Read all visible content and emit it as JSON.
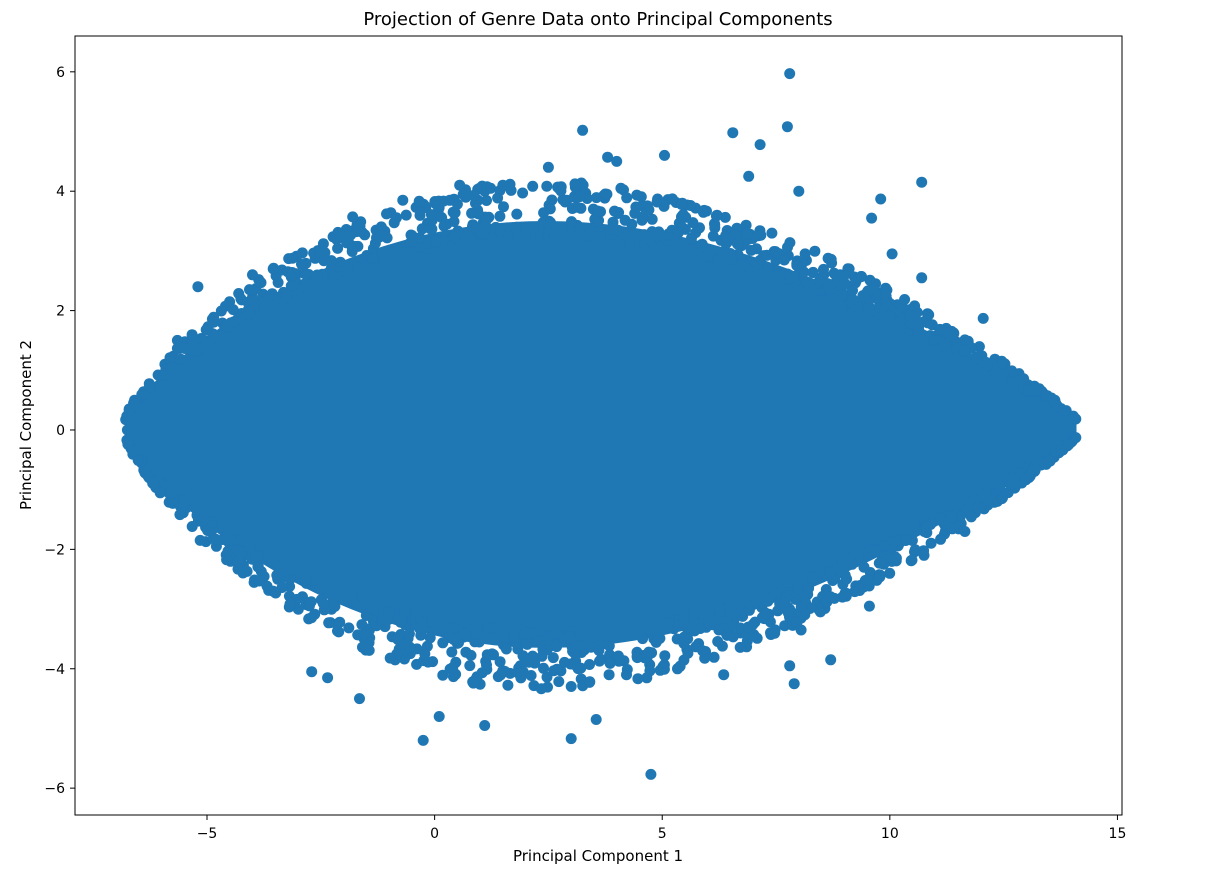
{
  "chart_data": {
    "type": "scatter",
    "title": "Projection of Genre Data onto Principal Components",
    "xlabel": "Principal Component 1",
    "ylabel": "Principal Component 2",
    "xlim": [
      -7.9,
      15.1
    ],
    "ylim": [
      -6.45,
      6.6
    ],
    "x_ticks": [
      -5,
      0,
      5,
      10,
      15
    ],
    "y_ticks": [
      -6,
      -4,
      -2,
      0,
      2,
      4,
      6
    ],
    "x_tick_labels": [
      "−5",
      "0",
      "5",
      "10",
      "15"
    ],
    "y_tick_labels": [
      "−6",
      "−4",
      "−2",
      "0",
      "2",
      "4",
      "6"
    ],
    "grid": false,
    "legend": "none",
    "series": [
      {
        "color": "#1f77b4",
        "marker": "circle",
        "description": "Dense lens-shaped cloud spanning x≈-6.8 to 14.1 and y≈-5.8 to 6.0; notable outliers listed",
        "points": [
          [
            7.8,
            5.97
          ],
          [
            7.75,
            5.08
          ],
          [
            3.25,
            5.02
          ],
          [
            6.55,
            4.98
          ],
          [
            5.05,
            4.6
          ],
          [
            3.8,
            4.57
          ],
          [
            7.15,
            4.78
          ],
          [
            10.7,
            4.15
          ],
          [
            9.8,
            3.87
          ],
          [
            4.0,
            4.5
          ],
          [
            2.5,
            4.4
          ],
          [
            6.9,
            4.25
          ],
          [
            8.0,
            4.0
          ],
          [
            9.6,
            3.55
          ],
          [
            10.05,
            2.95
          ],
          [
            10.7,
            2.55
          ],
          [
            12.05,
            1.87
          ],
          [
            14.05,
            0.2
          ],
          [
            13.85,
            0.15
          ],
          [
            13.6,
            0.1
          ],
          [
            -6.75,
            0.0
          ],
          [
            -5.2,
            2.4
          ],
          [
            -4.0,
            2.6
          ],
          [
            -1.8,
            3.57
          ],
          [
            -0.7,
            3.85
          ],
          [
            0.55,
            4.1
          ],
          [
            1.5,
            4.1
          ],
          [
            -5.15,
            -1.85
          ],
          [
            -5.65,
            1.5
          ],
          [
            -0.25,
            -5.2
          ],
          [
            4.75,
            -5.77
          ],
          [
            3.0,
            -5.17
          ],
          [
            3.55,
            -4.85
          ],
          [
            1.1,
            -4.95
          ],
          [
            0.1,
            -4.8
          ],
          [
            -1.65,
            -4.5
          ],
          [
            -2.7,
            -4.05
          ],
          [
            -2.35,
            -4.15
          ],
          [
            7.9,
            -4.25
          ],
          [
            8.7,
            -3.85
          ],
          [
            7.8,
            -3.95
          ],
          [
            6.35,
            -4.1
          ],
          [
            10.75,
            -2.1
          ],
          [
            11.65,
            -1.7
          ],
          [
            12.05,
            -1.1
          ],
          [
            9.55,
            -2.95
          ],
          [
            8.05,
            -3.35
          ]
        ]
      }
    ]
  }
}
